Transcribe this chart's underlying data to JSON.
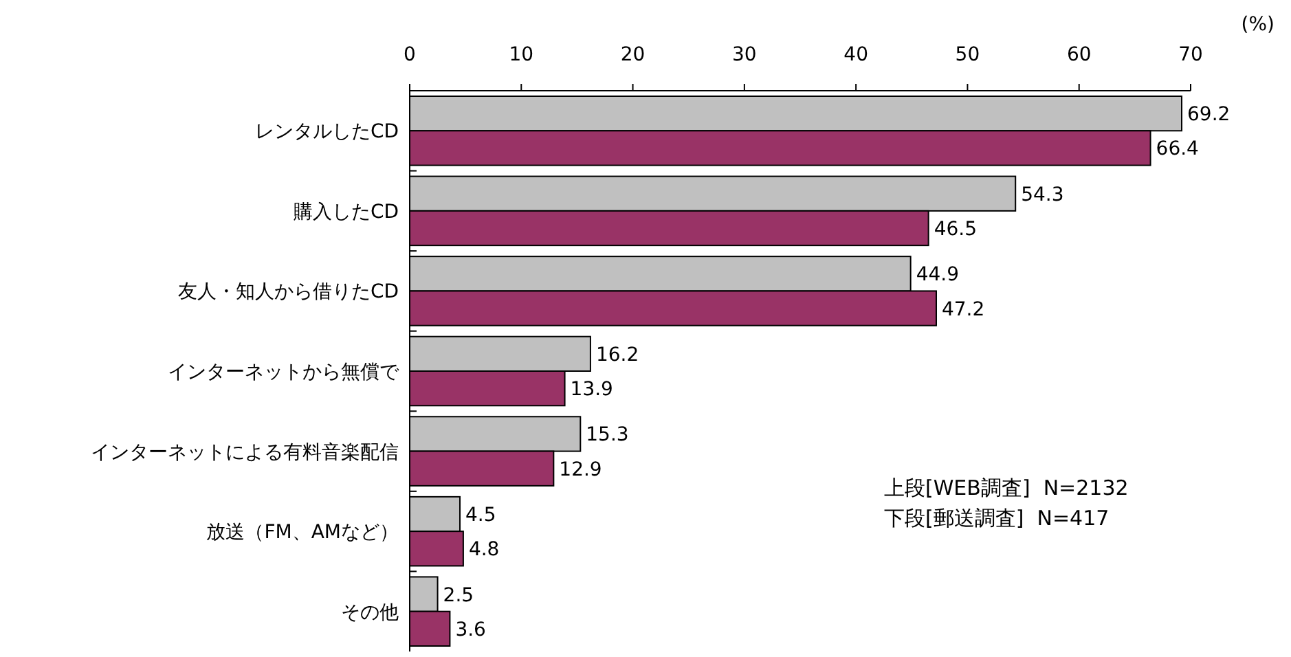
{
  "chart_data": {
    "type": "bar",
    "orientation": "horizontal",
    "xlabel": "(%)",
    "categories": [
      "レンタルしたCD",
      "購入したCD",
      "友人・知人から借りたCD",
      "インターネットから無償で",
      "インターネットによる有料音楽配信",
      "放送（FM、AMなど）",
      "その他"
    ],
    "series": [
      {
        "color": "#c0c0c0",
        "values": [
          69.2,
          54.3,
          44.9,
          16.2,
          15.3,
          4.5,
          2.5
        ]
      },
      {
        "color": "#993366",
        "values": [
          66.4,
          46.5,
          47.2,
          13.9,
          12.9,
          4.8,
          3.6
        ]
      }
    ],
    "xlim": [
      0,
      70
    ],
    "xticks": [
      0,
      10,
      20,
      30,
      40,
      50,
      60,
      70
    ],
    "data_labels": true,
    "grid": false,
    "annotations": [
      "上段[WEB調査]  N=2132",
      "下段[郵送調査]  N=417"
    ]
  }
}
